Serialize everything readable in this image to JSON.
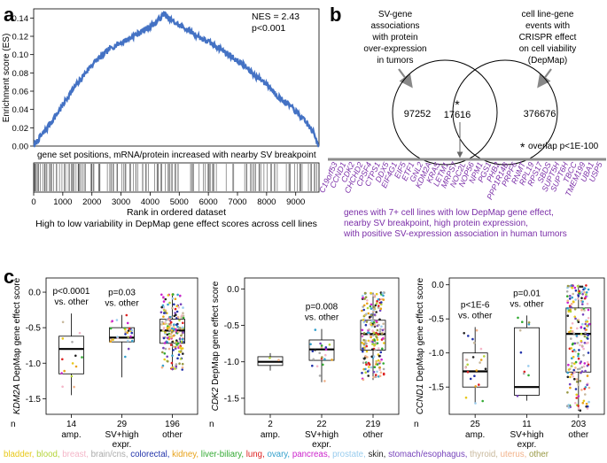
{
  "panels": {
    "a": {
      "letter": "a",
      "nes": "NES = 2.43",
      "pvalue": "p<0.001",
      "ylabel": "Enrichment score (ES)",
      "gene_set_label": "gene set positions, mRNA/protein increased with nearby SV breakpoint",
      "xlabel": "Rank in ordered dataset",
      "bar_caption": "High to low variability in DepMap gene effect scores across cell lines"
    },
    "b": {
      "letter": "b",
      "left_desc": [
        "SV-gene",
        "associations",
        "with protein",
        "over-expression",
        "in tumors"
      ],
      "right_desc": [
        "cell line-gene",
        "events with",
        "CRISPR effect",
        "on cell viability",
        "(DepMap)"
      ],
      "left_only": "97252",
      "overlap": "17616",
      "right_only": "376676",
      "star": "*",
      "overlap_note": "overlap p<1E-100",
      "genes": [
        "C19orf53",
        "CCND1",
        "CDK2",
        "CHCHD2",
        "CPSF4",
        "CTPS1",
        "DDX5",
        "EIF4G1",
        "EIF5",
        "ETF1",
        "GNL2",
        "KDM2A",
        "KRAS",
        "LETM1",
        "MRPS7",
        "NOC2L",
        "NOP56",
        "NPM1",
        "PGS1",
        "PHB2",
        "PPP1R14B",
        "PRPF6",
        "RNMT",
        "RPL19",
        "RPS17",
        "SBDS",
        "SUPT5H",
        "SUPT6H",
        "TBCC",
        "TMEM199",
        "UBA1",
        "USP5"
      ],
      "gene_caption": [
        "genes with 7+ cell lines with low DepMap gene effect,",
        "nearby SV breakpoint, high protein expression,",
        "with positive SV-expression association in human tumors"
      ]
    },
    "c": {
      "letter": "c",
      "n_label": "n"
    }
  },
  "chart_data": [
    {
      "type": "line",
      "title": "",
      "xlabel": "Rank in ordered dataset",
      "ylabel": "Enrichment score (ES)",
      "xlim": [
        0,
        9800
      ],
      "ylim": [
        0,
        0.15
      ],
      "xticks": [
        0,
        1000,
        2000,
        3000,
        4000,
        5000,
        6000,
        7000,
        8000,
        9000
      ],
      "yticks": [
        0.0,
        0.02,
        0.04,
        0.06,
        0.08,
        0.1,
        0.12,
        0.14
      ],
      "ytick_labels": [
        "0.00",
        "0.02",
        "0.04",
        "0.06",
        "0.08",
        "0.10",
        "0.12",
        "0.14"
      ],
      "series": [
        {
          "name": "ES",
          "x": [
            0,
            200,
            400,
            600,
            800,
            1000,
            1200,
            1400,
            1600,
            1800,
            2000,
            2200,
            2400,
            2600,
            2800,
            3000,
            3200,
            3400,
            3600,
            3800,
            4000,
            4200,
            4400,
            4500,
            4600,
            4800,
            5000,
            5200,
            5400,
            5600,
            5800,
            6000,
            6200,
            6400,
            6600,
            6800,
            7000,
            7200,
            7400,
            7600,
            7800,
            8000,
            8200,
            8400,
            8600,
            8800,
            9000,
            9200,
            9400,
            9600,
            9800
          ],
          "y": [
            0.0,
            0.009,
            0.017,
            0.026,
            0.035,
            0.045,
            0.055,
            0.064,
            0.072,
            0.081,
            0.089,
            0.095,
            0.1,
            0.106,
            0.11,
            0.113,
            0.116,
            0.12,
            0.123,
            0.127,
            0.131,
            0.135,
            0.142,
            0.145,
            0.14,
            0.136,
            0.132,
            0.129,
            0.125,
            0.121,
            0.117,
            0.114,
            0.11,
            0.107,
            0.102,
            0.098,
            0.093,
            0.089,
            0.083,
            0.077,
            0.073,
            0.068,
            0.061,
            0.054,
            0.049,
            0.044,
            0.038,
            0.031,
            0.024,
            0.015,
            0.0
          ]
        }
      ]
    },
    {
      "type": "box",
      "gene": "KDM2A",
      "ylabel_suffix": " DepMap gene effect score",
      "ylim": [
        -1.72,
        0.2
      ],
      "yticks": [
        0.0,
        -0.5,
        -1.0,
        -1.5
      ],
      "ytick_labels": [
        "0.0",
        "-0.5",
        "-1.0",
        "-1.5"
      ],
      "groups": [
        {
          "n": "14",
          "label": [
            "amp."
          ],
          "stats": {
            "whislo": -1.45,
            "q1": -1.15,
            "med": -0.8,
            "q3": -0.62,
            "whishi": -0.3
          },
          "count": 14,
          "annot": [
            "p<0.0001",
            "vs. other"
          ]
        },
        {
          "n": "29",
          "label": [
            "SV+high",
            "expr."
          ],
          "stats": {
            "whislo": -1.2,
            "q1": -0.7,
            "med": -0.64,
            "q3": -0.5,
            "whishi": -0.32
          },
          "count": 29,
          "annot": [
            "p=0.03",
            "vs. other"
          ]
        },
        {
          "n": "196",
          "label": [
            "other"
          ],
          "stats": {
            "whislo": -1.1,
            "q1": -0.72,
            "med": -0.54,
            "q3": -0.38,
            "whishi": -0.02
          },
          "count": 196,
          "annot": []
        }
      ]
    },
    {
      "type": "box",
      "gene": "CDK2",
      "ylabel_suffix": " DepMap gene effect score",
      "ylim": [
        -1.72,
        0.15
      ],
      "yticks": [
        0.0,
        -0.5,
        -1.0,
        -1.5
      ],
      "ytick_labels": [
        "0.0",
        "-0.5",
        "-1.0",
        "-1.5"
      ],
      "groups": [
        {
          "n": "2",
          "label": [
            "amp."
          ],
          "stats": {
            "whislo": -1.12,
            "q1": -1.05,
            "med": -1.0,
            "q3": -0.93,
            "whishi": -0.88
          },
          "count": 2,
          "annot": []
        },
        {
          "n": "22",
          "label": [
            "SV+high",
            "expr."
          ],
          "stats": {
            "whislo": -1.28,
            "q1": -0.98,
            "med": -0.83,
            "q3": -0.7,
            "whishi": -0.55
          },
          "count": 22,
          "annot": [
            "p=0.008",
            "vs. other"
          ]
        },
        {
          "n": "219",
          "label": [
            "other"
          ],
          "stats": {
            "whislo": -1.25,
            "q1": -0.84,
            "med": -0.62,
            "q3": -0.43,
            "whishi": -0.05
          },
          "count": 219,
          "annot": []
        }
      ]
    },
    {
      "type": "box",
      "gene": "CCND1",
      "ylabel_suffix": " DepMap gene effect score",
      "ylim": [
        -1.9,
        0.1
      ],
      "yticks": [
        0.0,
        -0.5,
        -1.0,
        -1.5
      ],
      "ytick_labels": [
        "0.0",
        "-0.5",
        "-1.0",
        "-1.5"
      ],
      "groups": [
        {
          "n": "25",
          "label": [
            "amp."
          ],
          "stats": {
            "whislo": -1.75,
            "q1": -1.5,
            "med": -1.27,
            "q3": -1.0,
            "whishi": -0.62
          },
          "count": 25,
          "annot": [
            "p<1E-6",
            "vs. other"
          ]
        },
        {
          "n": "11",
          "label": [
            "SV+high",
            "expr."
          ],
          "stats": {
            "whislo": -1.7,
            "q1": -1.62,
            "med": -1.5,
            "q3": -0.63,
            "whishi": -0.45
          },
          "count": 11,
          "annot": [
            "p=0.01",
            "vs. other"
          ]
        },
        {
          "n": "203",
          "label": [
            "other"
          ],
          "stats": {
            "whislo": -1.85,
            "q1": -1.28,
            "med": -0.72,
            "q3": -0.34,
            "whishi": 0.0
          },
          "count": 203,
          "annot": []
        }
      ]
    }
  ],
  "legend": [
    {
      "name": "bladder",
      "color": "#e8c81a"
    },
    {
      "name": "blood",
      "color": "#b5d43a"
    },
    {
      "name": "breast",
      "color": "#f4b6c8"
    },
    {
      "name": "brain/cns",
      "color": "#aaaaaa"
    },
    {
      "name": "colorectal",
      "color": "#2233aa"
    },
    {
      "name": "kidney",
      "color": "#e8a21a"
    },
    {
      "name": "liver-biliary",
      "color": "#33aa33"
    },
    {
      "name": "lung",
      "color": "#dd2222"
    },
    {
      "name": "ovary",
      "color": "#33a0cc"
    },
    {
      "name": "pancreas",
      "color": "#cc22cc"
    },
    {
      "name": "prostate",
      "color": "#99ccee"
    },
    {
      "name": "skin",
      "color": "#222222"
    },
    {
      "name": "stomach/esophagus",
      "color": "#7744bb"
    },
    {
      "name": "thyroid",
      "color": "#c8b89c"
    },
    {
      "name": "uterus",
      "color": "#f2b28a"
    },
    {
      "name": "other",
      "color": "#999944"
    }
  ],
  "colors": {
    "es_line": "#4472c4",
    "purple": "#7b2fa8",
    "gray_bar": "#8c8c8c"
  }
}
